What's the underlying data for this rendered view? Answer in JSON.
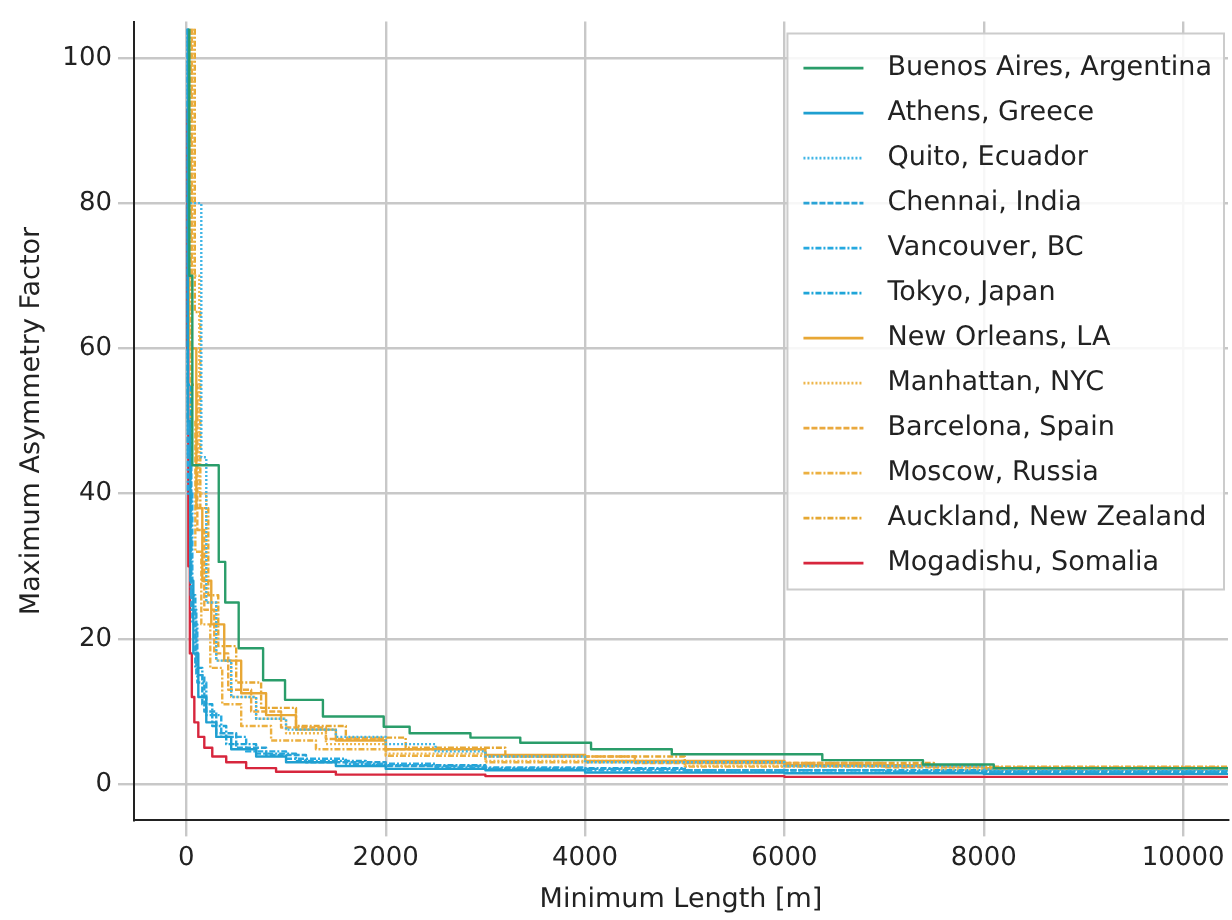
{
  "chart_data": {
    "type": "step",
    "xlabel": "Minimum Length [m]",
    "ylabel": "Maximum Asymmetry Factor",
    "xlim": [
      -525,
      10450
    ],
    "ylim": [
      -5,
      105
    ],
    "xticks": [
      0,
      2000,
      4000,
      6000,
      8000,
      10000
    ],
    "yticks": [
      0,
      20,
      40,
      60,
      80,
      100
    ],
    "grid": true,
    "legend": "top right",
    "marker": "none",
    "series": [
      {
        "name": "Buenos Aires, Argentina",
        "color": "#2a9d6a",
        "line_style": "solid",
        "x": [
          30,
          60,
          80,
          325,
          390,
          525,
          770,
          990,
          1370,
          1980,
          2240,
          2850,
          3350,
          4060,
          4870,
          6380,
          7390,
          8100,
          10450
        ],
        "values": [
          104,
          70,
          43.9,
          43.9,
          30.6,
          25,
          18.7,
          14.3,
          11.6,
          9.3,
          7.9,
          7.0,
          6.4,
          5.7,
          4.8,
          4.1,
          3.3,
          2.7,
          2.2
        ]
      },
      {
        "name": "Athens, Greece",
        "color": "#1f9fd0",
        "line_style": "solid",
        "x": [
          15,
          40,
          70,
          120,
          200,
          300,
          450,
          700,
          1000,
          1500,
          2000,
          3000,
          4000,
          6000,
          8000,
          10450
        ],
        "values": [
          104,
          50,
          28,
          18,
          12,
          8.5,
          6.5,
          4.8,
          3.8,
          3.0,
          2.5,
          2.1,
          1.9,
          1.6,
          1.5,
          1.4
        ]
      },
      {
        "name": "Quito, Ecuador",
        "color": "#41b6e6",
        "line_style": "dotted",
        "x": [
          20,
          150,
          200,
          300,
          450,
          700,
          1000,
          1500,
          2000,
          2500,
          3000,
          4000,
          6000,
          8000,
          10450
        ],
        "values": [
          104,
          80,
          45,
          25,
          17,
          12,
          9,
          7.5,
          6.5,
          5.5,
          4.5,
          3.8,
          3.0,
          2.5,
          2.0
        ]
      },
      {
        "name": "Chennai, India",
        "color": "#2aa3d6",
        "line_style": "dashed",
        "x": [
          15,
          50,
          100,
          180,
          300,
          500,
          800,
          1200,
          2000,
          3000,
          5000,
          7000,
          10450
        ],
        "values": [
          104,
          45,
          24,
          15,
          10,
          7,
          5,
          4,
          3,
          2.5,
          2.1,
          1.9,
          1.7
        ]
      },
      {
        "name": "Vancouver, BC",
        "color": "#26a9e0",
        "line_style": "dashdot",
        "x": [
          15,
          60,
          110,
          200,
          350,
          600,
          1000,
          1600,
          2500,
          4000,
          7000,
          10450
        ],
        "values": [
          104,
          40,
          22,
          14,
          9.5,
          6.5,
          4.5,
          3.5,
          2.8,
          2.3,
          1.9,
          1.7
        ]
      },
      {
        "name": "Tokyo, Japan",
        "color": "#1fa5d8",
        "line_style": "dashdot",
        "x": [
          15,
          45,
          90,
          160,
          260,
          400,
          700,
          1100,
          1800,
          3000,
          5000,
          8000,
          10450
        ],
        "values": [
          104,
          55,
          26,
          16,
          11,
          8,
          5.5,
          4.2,
          3.2,
          2.6,
          2.2,
          1.9,
          1.8
        ]
      },
      {
        "name": "New Orleans, LA",
        "color": "#e8a735",
        "line_style": "solid",
        "x": [
          25,
          100,
          160,
          250,
          380,
          550,
          800,
          1100,
          1500,
          2000,
          3000,
          4000,
          6000,
          8000,
          10450
        ],
        "values": [
          104,
          60,
          38,
          28,
          22,
          17,
          12.5,
          9.5,
          7.5,
          6,
          4.8,
          4,
          3.2,
          2.6,
          2.2
        ]
      },
      {
        "name": "Manhattan, NYC",
        "color": "#eeb54a",
        "line_style": "dotted",
        "x": [
          70,
          130,
          200,
          300,
          450,
          700,
          1000,
          1400,
          2000,
          3000,
          5000,
          7500,
          10450
        ],
        "values": [
          104,
          70,
          40,
          25,
          17,
          12,
          9,
          7,
          5.5,
          4.2,
          3.2,
          2.5,
          2.0
        ]
      },
      {
        "name": "Barcelona, Spain",
        "color": "#eaa93e",
        "line_style": "dashed",
        "x": [
          55,
          110,
          180,
          280,
          420,
          650,
          950,
          1400,
          2000,
          3000,
          4500,
          7000,
          10450
        ],
        "values": [
          104,
          55,
          35,
          24,
          18,
          13,
          10,
          7.8,
          6.2,
          4.8,
          3.8,
          2.9,
          2.3
        ]
      },
      {
        "name": "Moscow, Russia",
        "color": "#ecb040",
        "line_style": "dashdot",
        "x": [
          45,
          90,
          150,
          240,
          360,
          550,
          850,
          1300,
          2000,
          3000,
          5000,
          8000,
          10450
        ],
        "values": [
          104,
          50,
          32,
          22,
          16,
          11,
          8,
          6,
          4.8,
          3.9,
          3.0,
          2.4,
          2.0
        ]
      },
      {
        "name": "Auckland, New Zealand",
        "color": "#e6a832",
        "line_style": "dashdot",
        "x": [
          85,
          140,
          220,
          320,
          500,
          750,
          1100,
          1600,
          2200,
          3200,
          5000,
          7500,
          10450
        ],
        "values": [
          104,
          65,
          38,
          26,
          19,
          14,
          10.5,
          8,
          6.4,
          5,
          3.8,
          2.9,
          2.4
        ]
      },
      {
        "name": "Mogadishu, Somalia",
        "color": "#d7263d",
        "line_style": "solid",
        "x": [
          10,
          20,
          35,
          55,
          80,
          120,
          180,
          260,
          400,
          600,
          900,
          1500,
          3000,
          6000,
          10450
        ],
        "values": [
          93,
          60,
          30,
          18,
          12,
          8.5,
          6.5,
          5,
          3.8,
          3,
          2.2,
          1.7,
          1.3,
          1.1,
          1.0
        ]
      }
    ]
  }
}
